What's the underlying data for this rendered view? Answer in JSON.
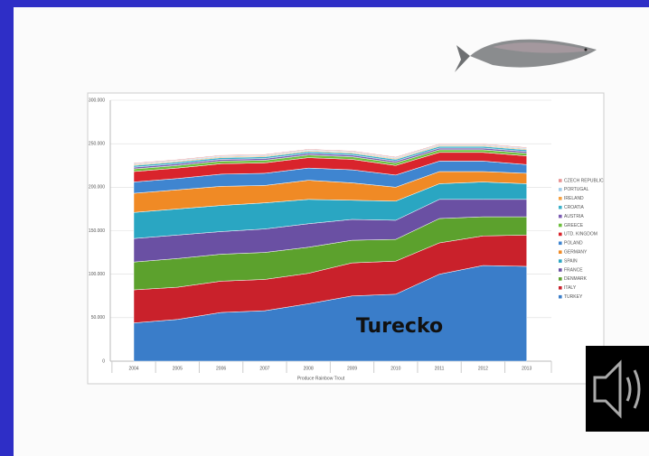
{
  "chart_data": {
    "type": "stacked-area",
    "annotation": "Turecko",
    "x_label": "Produce Rainbow Trout",
    "categories": [
      "2004",
      "2005",
      "2006",
      "2007",
      "2008",
      "2009",
      "2010",
      "2011",
      "2012",
      "2013"
    ],
    "ylim": [
      0,
      300000
    ],
    "yticks": [
      0,
      {
        "value": 50000,
        "label": "50.000"
      },
      {
        "value": 100000,
        "label": "100.000"
      },
      {
        "value": 150000,
        "label": "150.000"
      },
      {
        "value": 200000,
        "label": "200.000"
      },
      {
        "value": 250000,
        "label": "250.000"
      },
      {
        "value": 300000,
        "label": "300.000"
      }
    ],
    "grid": true,
    "legend": "right",
    "series": [
      {
        "name": "TURKEY",
        "color": "#3a7dc9",
        "values": [
          44000,
          48000,
          56000,
          58000,
          66000,
          75000,
          77000,
          100000,
          110000,
          109000
        ]
      },
      {
        "name": "ITALY",
        "color": "#c9212b",
        "values": [
          38000,
          37000,
          36000,
          36000,
          35000,
          38000,
          38000,
          36000,
          34000,
          36000
        ]
      },
      {
        "name": "DENMARK",
        "color": "#5ca12d",
        "values": [
          32000,
          33000,
          31000,
          31000,
          30000,
          26000,
          25000,
          28000,
          22000,
          21000
        ]
      },
      {
        "name": "FRANCE",
        "color": "#6a50a3",
        "values": [
          27000,
          27000,
          26000,
          27000,
          27000,
          24000,
          22000,
          22000,
          20000,
          20000
        ]
      },
      {
        "name": "SPAIN",
        "color": "#2aa6c2",
        "values": [
          30000,
          30000,
          30000,
          30000,
          28000,
          22000,
          22000,
          18000,
          20000,
          18000
        ]
      },
      {
        "name": "GERMANY",
        "color": "#f08a25",
        "values": [
          22000,
          22000,
          22000,
          20000,
          22000,
          20000,
          16000,
          14000,
          12000,
          12000
        ]
      },
      {
        "name": "POLAND",
        "color": "#3f85d0",
        "values": [
          13000,
          13000,
          14000,
          14000,
          14000,
          15000,
          14000,
          12000,
          12000,
          10000
        ]
      },
      {
        "name": "UTD. KINGDOM",
        "color": "#d9242c",
        "values": [
          12000,
          12000,
          12000,
          12000,
          12000,
          12000,
          11000,
          10000,
          10000,
          10000
        ]
      },
      {
        "name": "GREECE",
        "color": "#6dbf3d",
        "values": [
          3000,
          3000,
          3000,
          3000,
          3000,
          3000,
          3000,
          3000,
          3000,
          3000
        ]
      },
      {
        "name": "AUSTRIA",
        "color": "#7b5bb2",
        "values": [
          2000,
          2000,
          2000,
          2000,
          2000,
          2000,
          2000,
          2000,
          2000,
          2000
        ]
      },
      {
        "name": "CROATIA",
        "color": "#3bb1c9",
        "values": [
          2000,
          2000,
          2000,
          2000,
          2000,
          2000,
          2000,
          2000,
          2000,
          2000
        ]
      },
      {
        "name": "IRELAND",
        "color": "#f5a142",
        "values": [
          1000,
          1000,
          1000,
          1000,
          1000,
          1000,
          1000,
          1000,
          1000,
          1000
        ]
      },
      {
        "name": "PORTUGAL",
        "color": "#9ecbe9",
        "values": [
          1000,
          1000,
          1000,
          1000,
          1000,
          1000,
          1000,
          1000,
          1000,
          1000
        ]
      },
      {
        "name": "CZECH REPUBLIC",
        "color": "#e89292",
        "values": [
          1000,
          1000,
          1000,
          1000,
          1000,
          1000,
          1000,
          1000,
          1000,
          1000
        ]
      }
    ]
  }
}
